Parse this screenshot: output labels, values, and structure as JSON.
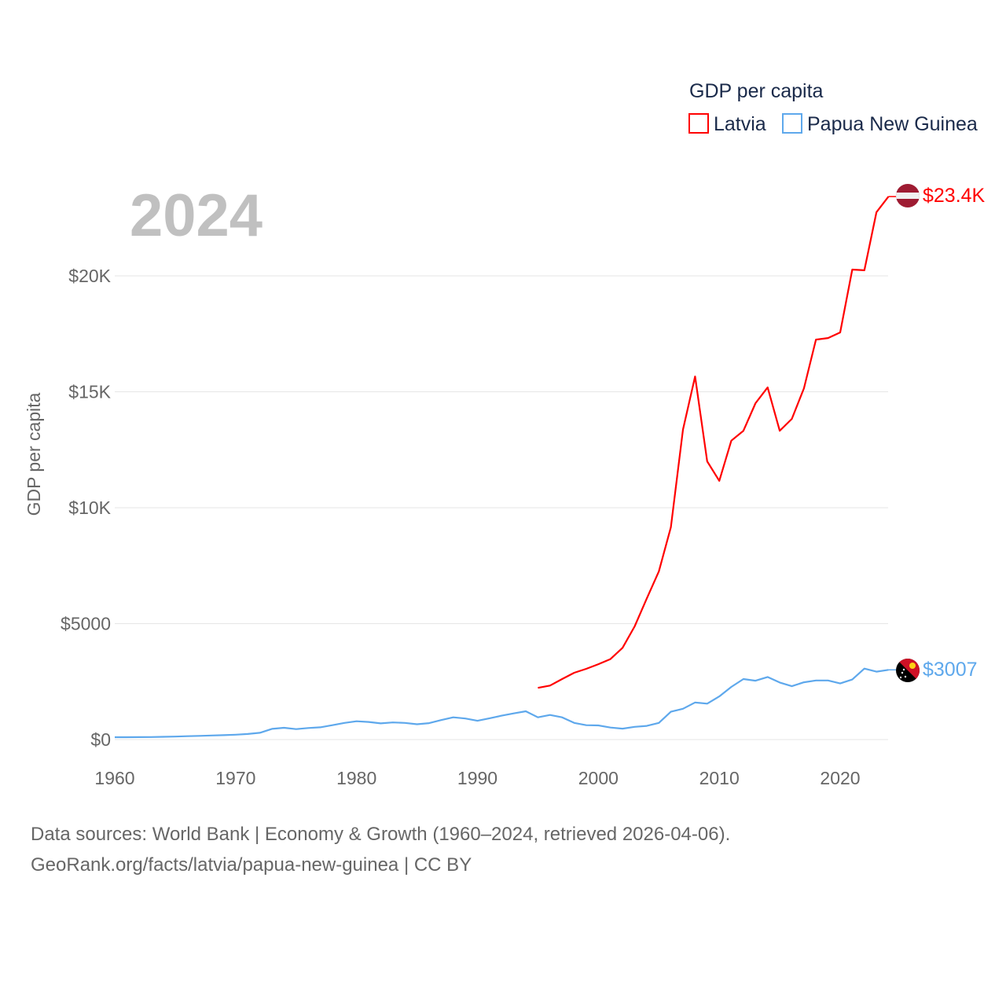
{
  "chart_data": {
    "type": "line",
    "title": "GDP per capita",
    "year_label": "2024",
    "ylabel": "GDP per capita",
    "xlabel": "",
    "xlim": [
      1960,
      2024
    ],
    "ylim": [
      0,
      23500
    ],
    "grid": true,
    "legend_position": "top-right",
    "x_ticks": [
      1960,
      1970,
      1980,
      1990,
      2000,
      2010,
      2020
    ],
    "x_tick_labels": [
      "1960",
      "1970",
      "1980",
      "1990",
      "2000",
      "2010",
      "2020"
    ],
    "y_ticks": [
      0,
      5000,
      10000,
      15000,
      20000
    ],
    "y_tick_labels": [
      "$0",
      "$5000",
      "$10K",
      "$15K",
      "$20K"
    ],
    "series": [
      {
        "name": "Latvia",
        "color": "#ff0000",
        "end_label": "$23.4K",
        "flag": "latvia-flag",
        "x_start": 1995,
        "values": [
          2230,
          2330,
          2610,
          2880,
          3050,
          3250,
          3470,
          3955,
          4880,
          6080,
          7250,
          9160,
          13370,
          15660,
          12000,
          11160,
          12890,
          13320,
          14510,
          15190,
          13320,
          13830,
          15150,
          17250,
          17320,
          17560,
          20270,
          20240,
          22750,
          23420
        ]
      },
      {
        "name": "Papua New Guinea",
        "color": "#5ea8ec",
        "end_label": "$3007",
        "flag": "papua-new-guinea-flag",
        "x_start": 1960,
        "values": [
          100,
          100,
          105,
          110,
          120,
          130,
          145,
          160,
          175,
          190,
          210,
          240,
          290,
          460,
          510,
          450,
          500,
          530,
          620,
          720,
          790,
          760,
          700,
          740,
          720,
          660,
          710,
          840,
          960,
          910,
          810,
          920,
          1030,
          1130,
          1220,
          960,
          1060,
          960,
          720,
          620,
          610,
          520,
          470,
          550,
          590,
          720,
          1200,
          1330,
          1600,
          1550,
          1860,
          2270,
          2610,
          2540,
          2700,
          2460,
          2300,
          2470,
          2550,
          2550,
          2420,
          2590,
          3060,
          2930,
          3007
        ]
      }
    ]
  },
  "footer": {
    "line1": "Data sources: World Bank | Economy & Growth (1960–2024, retrieved 2026-04-06).",
    "line2": "GeoRank.org/facts/latvia/papua-new-guinea | CC BY"
  }
}
